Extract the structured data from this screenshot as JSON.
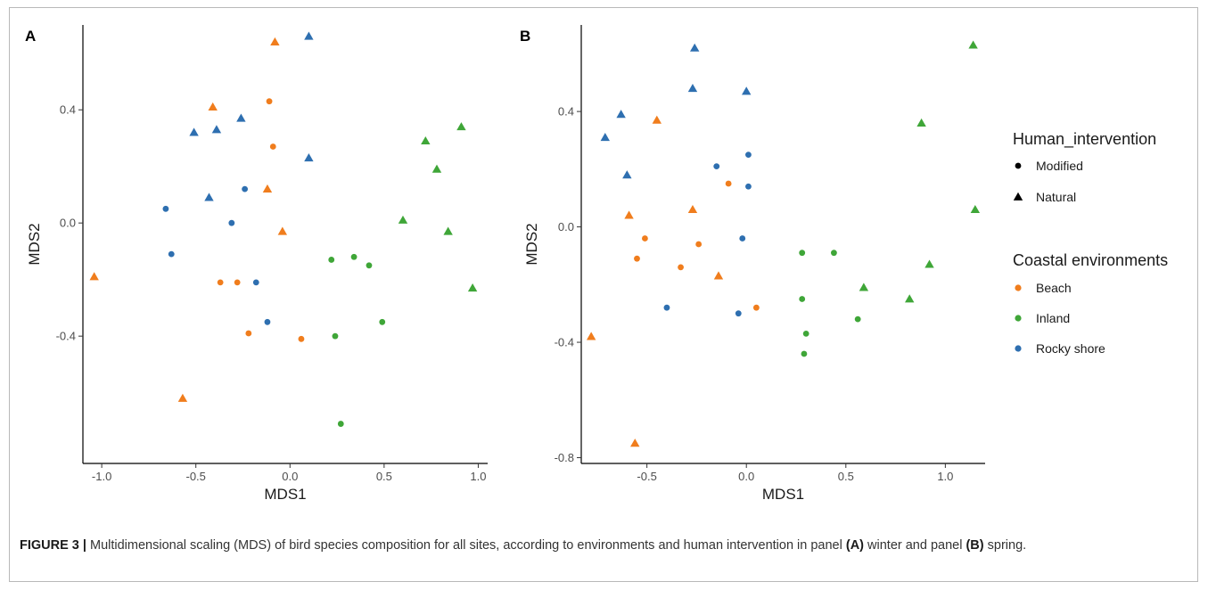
{
  "colors": {
    "Beach": "#f07d1d",
    "Inland": "#3fa638",
    "Rocky shore": "#2e6fb0",
    "axis": "#000000",
    "tick_text": "#4d4d4d",
    "frame": "#b9b9b9"
  },
  "legend": {
    "shape_title": "Human_intervention",
    "shape_items": [
      {
        "label": "Modified",
        "shape": "circle"
      },
      {
        "label": "Natural",
        "shape": "triangle"
      }
    ],
    "color_title": "Coastal environments",
    "color_items": [
      {
        "label": "Beach",
        "color": "#f07d1d"
      },
      {
        "label": "Inland",
        "color": "#3fa638"
      },
      {
        "label": "Rocky shore",
        "color": "#2e6fb0"
      }
    ],
    "placement": "right"
  },
  "caption": {
    "label": "FIGURE 3 |",
    "text_1": " Multidimensional scaling (MDS) of bird species composition for all sites, according to environments and human intervention in panel ",
    "bold_a": "(A)",
    "text_2": " winter and panel ",
    "bold_b": "(B)",
    "text_3": " spring."
  },
  "chart_data": [
    {
      "type": "scatter",
      "panel": "A",
      "xlabel": "MDS1",
      "ylabel": "MDS2",
      "xlim": [
        -1.1,
        1.05
      ],
      "ylim": [
        -0.85,
        0.7
      ],
      "xticks": [
        -1.0,
        -0.5,
        0.0,
        0.5,
        1.0
      ],
      "xtick_labels": [
        "-1.0",
        "-0.5",
        "0.0",
        "0.5",
        "1.0"
      ],
      "yticks": [
        -0.4,
        0.0,
        0.4
      ],
      "ytick_labels": [
        "-0.4",
        "0.0",
        "0.4"
      ],
      "grid": false,
      "points": [
        {
          "x": -0.08,
          "y": 0.64,
          "env": "Beach",
          "hi": "Natural"
        },
        {
          "x": -0.41,
          "y": 0.41,
          "env": "Beach",
          "hi": "Natural"
        },
        {
          "x": -0.11,
          "y": 0.43,
          "env": "Beach",
          "hi": "Modified"
        },
        {
          "x": -0.09,
          "y": 0.27,
          "env": "Beach",
          "hi": "Modified"
        },
        {
          "x": -0.12,
          "y": 0.12,
          "env": "Beach",
          "hi": "Natural"
        },
        {
          "x": -0.04,
          "y": -0.03,
          "env": "Beach",
          "hi": "Natural"
        },
        {
          "x": -1.04,
          "y": -0.19,
          "env": "Beach",
          "hi": "Natural"
        },
        {
          "x": -0.37,
          "y": -0.21,
          "env": "Beach",
          "hi": "Modified"
        },
        {
          "x": -0.28,
          "y": -0.21,
          "env": "Beach",
          "hi": "Modified"
        },
        {
          "x": -0.22,
          "y": -0.39,
          "env": "Beach",
          "hi": "Modified"
        },
        {
          "x": 0.06,
          "y": -0.41,
          "env": "Beach",
          "hi": "Modified"
        },
        {
          "x": -0.57,
          "y": -0.62,
          "env": "Beach",
          "hi": "Natural"
        },
        {
          "x": 0.1,
          "y": 0.66,
          "env": "Rocky shore",
          "hi": "Natural"
        },
        {
          "x": -0.51,
          "y": 0.32,
          "env": "Rocky shore",
          "hi": "Natural"
        },
        {
          "x": -0.39,
          "y": 0.33,
          "env": "Rocky shore",
          "hi": "Natural"
        },
        {
          "x": -0.26,
          "y": 0.37,
          "env": "Rocky shore",
          "hi": "Natural"
        },
        {
          "x": 0.1,
          "y": 0.23,
          "env": "Rocky shore",
          "hi": "Natural"
        },
        {
          "x": -0.24,
          "y": 0.12,
          "env": "Rocky shore",
          "hi": "Modified"
        },
        {
          "x": -0.43,
          "y": 0.09,
          "env": "Rocky shore",
          "hi": "Natural"
        },
        {
          "x": -0.66,
          "y": 0.05,
          "env": "Rocky shore",
          "hi": "Modified"
        },
        {
          "x": -0.31,
          "y": 0.0,
          "env": "Rocky shore",
          "hi": "Modified"
        },
        {
          "x": -0.63,
          "y": -0.11,
          "env": "Rocky shore",
          "hi": "Modified"
        },
        {
          "x": -0.18,
          "y": -0.21,
          "env": "Rocky shore",
          "hi": "Modified"
        },
        {
          "x": -0.12,
          "y": -0.35,
          "env": "Rocky shore",
          "hi": "Modified"
        },
        {
          "x": 0.91,
          "y": 0.34,
          "env": "Inland",
          "hi": "Natural"
        },
        {
          "x": 0.72,
          "y": 0.29,
          "env": "Inland",
          "hi": "Natural"
        },
        {
          "x": 0.78,
          "y": 0.19,
          "env": "Inland",
          "hi": "Natural"
        },
        {
          "x": 0.6,
          "y": 0.01,
          "env": "Inland",
          "hi": "Natural"
        },
        {
          "x": 0.84,
          "y": -0.03,
          "env": "Inland",
          "hi": "Natural"
        },
        {
          "x": 0.22,
          "y": -0.13,
          "env": "Inland",
          "hi": "Modified"
        },
        {
          "x": 0.34,
          "y": -0.12,
          "env": "Inland",
          "hi": "Modified"
        },
        {
          "x": 0.42,
          "y": -0.15,
          "env": "Inland",
          "hi": "Modified"
        },
        {
          "x": 0.97,
          "y": -0.23,
          "env": "Inland",
          "hi": "Natural"
        },
        {
          "x": 0.49,
          "y": -0.35,
          "env": "Inland",
          "hi": "Modified"
        },
        {
          "x": 0.24,
          "y": -0.4,
          "env": "Inland",
          "hi": "Modified"
        },
        {
          "x": 0.27,
          "y": -0.71,
          "env": "Inland",
          "hi": "Modified"
        }
      ]
    },
    {
      "type": "scatter",
      "panel": "B",
      "xlabel": "MDS1",
      "ylabel": "MDS2",
      "xlim": [
        -0.83,
        1.2
      ],
      "ylim": [
        -0.82,
        0.7
      ],
      "xticks": [
        -0.5,
        0.0,
        0.5,
        1.0
      ],
      "xtick_labels": [
        "-0.5",
        "0.0",
        "0.5",
        "1.0"
      ],
      "yticks": [
        -0.8,
        -0.4,
        0.0,
        0.4
      ],
      "ytick_labels": [
        "-0.8",
        "-0.4",
        "0.0",
        "0.4"
      ],
      "grid": false,
      "points": [
        {
          "x": -0.26,
          "y": 0.62,
          "env": "Rocky shore",
          "hi": "Natural"
        },
        {
          "x": -0.27,
          "y": 0.48,
          "env": "Rocky shore",
          "hi": "Natural"
        },
        {
          "x": 0.0,
          "y": 0.47,
          "env": "Rocky shore",
          "hi": "Natural"
        },
        {
          "x": -0.63,
          "y": 0.39,
          "env": "Rocky shore",
          "hi": "Natural"
        },
        {
          "x": -0.71,
          "y": 0.31,
          "env": "Rocky shore",
          "hi": "Natural"
        },
        {
          "x": 0.01,
          "y": 0.25,
          "env": "Rocky shore",
          "hi": "Modified"
        },
        {
          "x": -0.15,
          "y": 0.21,
          "env": "Rocky shore",
          "hi": "Modified"
        },
        {
          "x": -0.6,
          "y": 0.18,
          "env": "Rocky shore",
          "hi": "Natural"
        },
        {
          "x": 0.01,
          "y": 0.14,
          "env": "Rocky shore",
          "hi": "Modified"
        },
        {
          "x": -0.02,
          "y": -0.04,
          "env": "Rocky shore",
          "hi": "Modified"
        },
        {
          "x": -0.4,
          "y": -0.28,
          "env": "Rocky shore",
          "hi": "Modified"
        },
        {
          "x": -0.04,
          "y": -0.3,
          "env": "Rocky shore",
          "hi": "Modified"
        },
        {
          "x": -0.45,
          "y": 0.37,
          "env": "Beach",
          "hi": "Natural"
        },
        {
          "x": -0.09,
          "y": 0.15,
          "env": "Beach",
          "hi": "Modified"
        },
        {
          "x": -0.27,
          "y": 0.06,
          "env": "Beach",
          "hi": "Natural"
        },
        {
          "x": -0.59,
          "y": 0.04,
          "env": "Beach",
          "hi": "Natural"
        },
        {
          "x": -0.51,
          "y": -0.04,
          "env": "Beach",
          "hi": "Modified"
        },
        {
          "x": -0.24,
          "y": -0.06,
          "env": "Beach",
          "hi": "Modified"
        },
        {
          "x": -0.55,
          "y": -0.11,
          "env": "Beach",
          "hi": "Modified"
        },
        {
          "x": -0.33,
          "y": -0.14,
          "env": "Beach",
          "hi": "Modified"
        },
        {
          "x": -0.14,
          "y": -0.17,
          "env": "Beach",
          "hi": "Natural"
        },
        {
          "x": 0.05,
          "y": -0.28,
          "env": "Beach",
          "hi": "Modified"
        },
        {
          "x": -0.78,
          "y": -0.38,
          "env": "Beach",
          "hi": "Natural"
        },
        {
          "x": -0.56,
          "y": -0.75,
          "env": "Beach",
          "hi": "Natural"
        },
        {
          "x": 1.14,
          "y": 0.63,
          "env": "Inland",
          "hi": "Natural"
        },
        {
          "x": 0.88,
          "y": 0.36,
          "env": "Inland",
          "hi": "Natural"
        },
        {
          "x": 1.15,
          "y": 0.06,
          "env": "Inland",
          "hi": "Natural"
        },
        {
          "x": 0.28,
          "y": -0.09,
          "env": "Inland",
          "hi": "Modified"
        },
        {
          "x": 0.44,
          "y": -0.09,
          "env": "Inland",
          "hi": "Modified"
        },
        {
          "x": 0.92,
          "y": -0.13,
          "env": "Inland",
          "hi": "Natural"
        },
        {
          "x": 0.59,
          "y": -0.21,
          "env": "Inland",
          "hi": "Natural"
        },
        {
          "x": 0.28,
          "y": -0.25,
          "env": "Inland",
          "hi": "Modified"
        },
        {
          "x": 0.82,
          "y": -0.25,
          "env": "Inland",
          "hi": "Natural"
        },
        {
          "x": 0.56,
          "y": -0.32,
          "env": "Inland",
          "hi": "Modified"
        },
        {
          "x": 0.3,
          "y": -0.37,
          "env": "Inland",
          "hi": "Modified"
        },
        {
          "x": 0.29,
          "y": -0.44,
          "env": "Inland",
          "hi": "Modified"
        }
      ]
    }
  ]
}
